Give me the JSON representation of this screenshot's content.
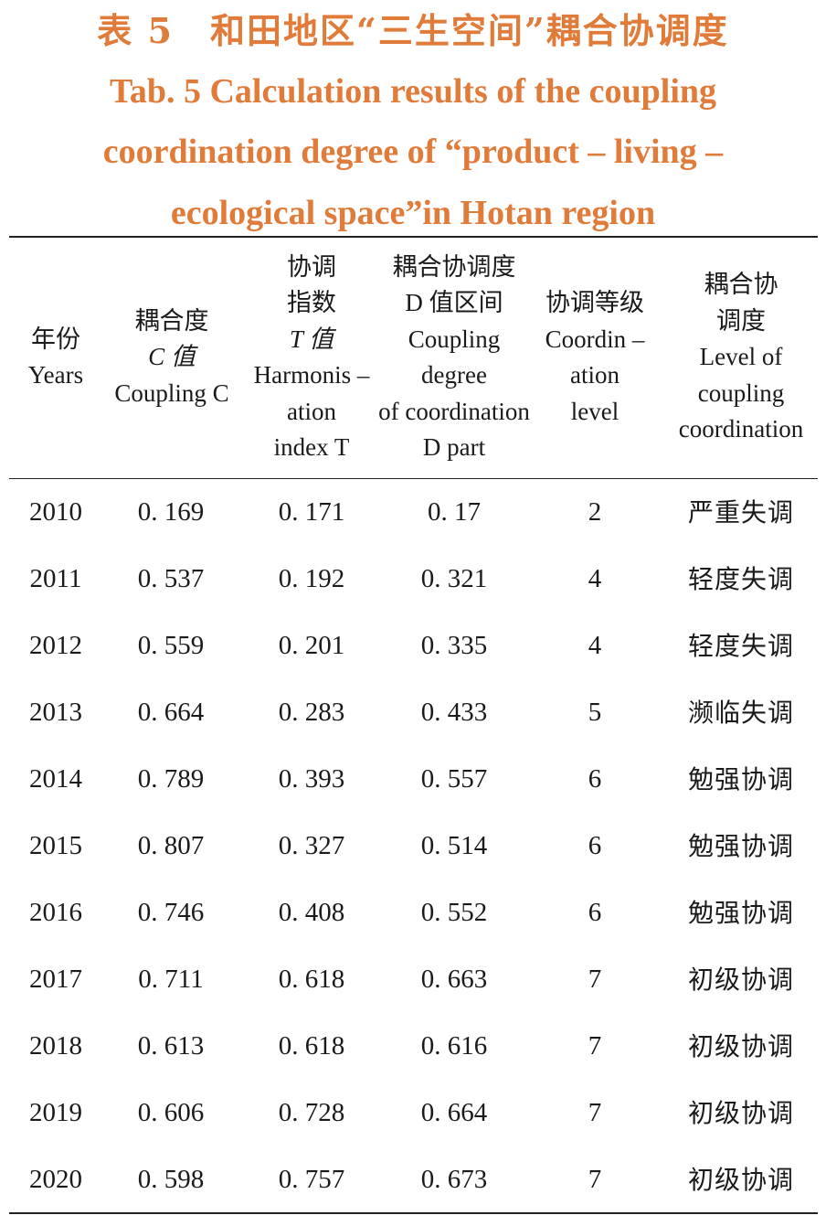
{
  "caption": {
    "zh": "表 5　和田地区“三生空间”耦合协调度",
    "en_line1": "Tab. 5 Calculation results of the coupling",
    "en_line2": "coordination degree of “product – living –",
    "en_line3": "ecological space”in Hotan region"
  },
  "headers": {
    "year": [
      "年份",
      "Years"
    ],
    "coupling": [
      "耦合度",
      "C 值",
      "Coupling C"
    ],
    "harmonisation": [
      "协调",
      "指数",
      "T 值",
      "Harmonis –",
      "ation",
      "index T"
    ],
    "d_range": [
      "耦合协调度",
      "D 值区间",
      "Coupling",
      "degree",
      "of coordination",
      "D part"
    ],
    "coord_level": [
      "协调等级",
      "Coordin –",
      "ation",
      "level"
    ],
    "level_desc": [
      "耦合协",
      "调度",
      "Level of",
      "coupling",
      "coordination"
    ]
  },
  "rows": [
    {
      "year": "2010",
      "c": "0. 169",
      "t": "0. 171",
      "d": "0. 17",
      "level": "2",
      "desc": "严重失调"
    },
    {
      "year": "2011",
      "c": "0. 537",
      "t": "0. 192",
      "d": "0. 321",
      "level": "4",
      "desc": "轻度失调"
    },
    {
      "year": "2012",
      "c": "0. 559",
      "t": "0. 201",
      "d": "0. 335",
      "level": "4",
      "desc": "轻度失调"
    },
    {
      "year": "2013",
      "c": "0. 664",
      "t": "0. 283",
      "d": "0. 433",
      "level": "5",
      "desc": "濒临失调"
    },
    {
      "year": "2014",
      "c": "0. 789",
      "t": "0. 393",
      "d": "0. 557",
      "level": "6",
      "desc": "勉强协调"
    },
    {
      "year": "2015",
      "c": "0. 807",
      "t": "0. 327",
      "d": "0. 514",
      "level": "6",
      "desc": "勉强协调"
    },
    {
      "year": "2016",
      "c": "0. 746",
      "t": "0. 408",
      "d": "0. 552",
      "level": "6",
      "desc": "勉强协调"
    },
    {
      "year": "2017",
      "c": "0. 711",
      "t": "0. 618",
      "d": "0. 663",
      "level": "7",
      "desc": "初级协调"
    },
    {
      "year": "2018",
      "c": "0. 613",
      "t": "0. 618",
      "d": "0. 616",
      "level": "7",
      "desc": "初级协调"
    },
    {
      "year": "2019",
      "c": "0. 606",
      "t": "0. 728",
      "d": "0. 664",
      "level": "7",
      "desc": "初级协调"
    },
    {
      "year": "2020",
      "c": "0. 598",
      "t": "0. 757",
      "d": "0. 673",
      "level": "7",
      "desc": "初级协调"
    }
  ]
}
